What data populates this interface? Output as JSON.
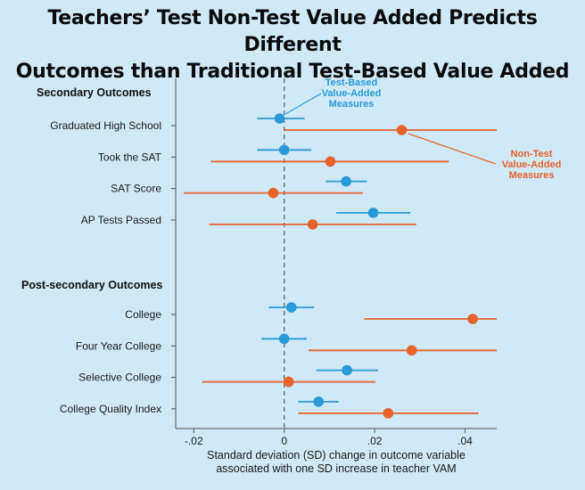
{
  "chart_data": {
    "type": "scatter",
    "title_lines": [
      "Teachers’ Test Non-Test Value Added Predicts Different",
      "Outcomes than Traditional Test-Based Value Added"
    ],
    "xlabel_lines": [
      "Standard deviation (SD) change in outcome variable",
      "associated with one SD increase in teacher VAM"
    ],
    "xlim": [
      -0.024,
      0.047
    ],
    "xticks": [
      {
        "value": -0.02,
        "label": "-.02"
      },
      {
        "value": 0,
        "label": "0"
      },
      {
        "value": 0.02,
        "label": ".02"
      },
      {
        "value": 0.04,
        "label": ".04"
      }
    ],
    "reference_line": 0,
    "groups": [
      {
        "label": "Secondary Outcomes",
        "items": [
          {
            "label": "Graduated High School",
            "test": {
              "est": -0.001,
              "lo": -0.006,
              "hi": 0.0045
            },
            "nontest": {
              "est": 0.026,
              "lo": 0.0,
              "hi": 0.047
            }
          },
          {
            "label": "Took the SAT",
            "test": {
              "est": 0.0,
              "lo": -0.006,
              "hi": 0.006
            },
            "nontest": {
              "est": 0.0102,
              "lo": -0.0162,
              "hi": 0.0364
            }
          },
          {
            "label": "SAT Score",
            "test": {
              "est": 0.0137,
              "lo": 0.0092,
              "hi": 0.0183
            },
            "nontest": {
              "est": -0.0024,
              "lo": -0.0222,
              "hi": 0.0174
            }
          },
          {
            "label": "AP Tests Passed",
            "test": {
              "est": 0.0197,
              "lo": 0.0115,
              "hi": 0.0279
            },
            "nontest": {
              "est": 0.0063,
              "lo": -0.0166,
              "hi": 0.0292
            }
          }
        ]
      },
      {
        "label": "Post-secondary Outcomes",
        "items": [
          {
            "label": "College",
            "test": {
              "est": 0.0016,
              "lo": -0.0034,
              "hi": 0.0066
            },
            "nontest": {
              "est": 0.0417,
              "lo": 0.0177,
              "hi": 0.047
            }
          },
          {
            "label": "Four Year College",
            "test": {
              "est": 0.0,
              "lo": -0.005,
              "hi": 0.005
            },
            "nontest": {
              "est": 0.0282,
              "lo": 0.0054,
              "hi": 0.047
            }
          },
          {
            "label": "Selective College",
            "test": {
              "est": 0.0139,
              "lo": 0.0071,
              "hi": 0.0207
            },
            "nontest": {
              "est": 0.001,
              "lo": -0.0182,
              "hi": 0.0202
            }
          },
          {
            "label": "College Quality Index",
            "test": {
              "est": 0.0076,
              "lo": 0.0031,
              "hi": 0.012
            },
            "nontest": {
              "est": 0.023,
              "lo": 0.0031,
              "hi": 0.043
            }
          }
        ]
      }
    ],
    "series": [
      {
        "key": "test",
        "name_lines": [
          "Test-Based",
          "Value-Added",
          "Measures"
        ],
        "color": "#2a9ad6"
      },
      {
        "key": "nontest",
        "name_lines": [
          "Non-Test",
          "Value-Added",
          "Measures"
        ],
        "color": "#e8622c"
      }
    ],
    "grid": false,
    "background": "#cfe9f7"
  }
}
